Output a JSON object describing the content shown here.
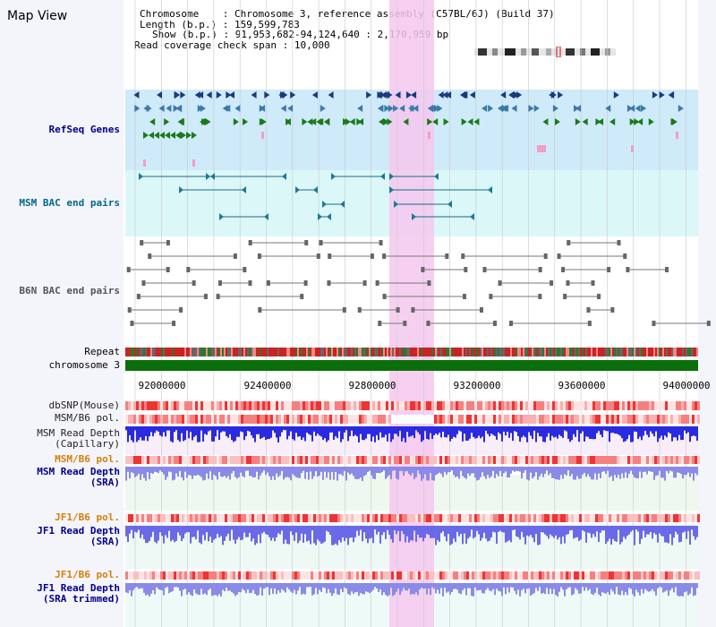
{
  "app": {
    "title": "Map View"
  },
  "header": {
    "chromosome_label": "Chromosome",
    "chromosome_value": "Chromosome 3, reference assembly (C57BL/6J) (Build 37)",
    "length_label": "Length (b.p.)",
    "length_value": "159,599,783",
    "show_label": "Show (b.p.)",
    "show_value": "91,953,682-94,124,640 : 2,170,959 bp",
    "coverage_label": "Read coverage check span",
    "coverage_value": "10,000"
  },
  "tracks": {
    "refseq": "RefSeq Genes",
    "msm_bac": "MSM BAC end pairs",
    "b6n_bac": "B6N BAC end pairs",
    "repeat": "Repeat",
    "chromosome": "chromosome 3",
    "dbsnp": "dbSNP(Mouse)",
    "msm_pol": "MSM/B6 pol.",
    "msm_depth_cap_1": "MSM Read Depth",
    "msm_depth_cap_2": "(Capillary)",
    "msm_pol2": "MSM/B6 pol.",
    "msm_depth_sra_1": "MSM Read Depth",
    "msm_depth_sra_2": "(SRA)",
    "jf1_pol": "JF1/B6 pol.",
    "jf1_depth_1": "JF1 Read Depth",
    "jf1_depth_2": "(SRA)",
    "jf1_pol2": "JF1/B6 pol.",
    "jf1_trim_1": "JF1 Read Depth",
    "jf1_trim_2": "(SRA trimmed)"
  },
  "axis": {
    "ticks": [
      "92000000",
      "92400000",
      "92800000",
      "93200000",
      "93600000",
      "94000000"
    ]
  },
  "colors": {
    "refseq_bg": "#cfeaf9",
    "msm_bg": "#d9f6f6",
    "highlight": "#f6c8ee",
    "chrom_bar": "#0a6e0a",
    "depth_blue": "#3a3aee",
    "depth_light": "#8888ee",
    "pol_red": "#ee3333"
  },
  "icons": {
    "ideogram": "chromosome-ideogram-icon"
  }
}
